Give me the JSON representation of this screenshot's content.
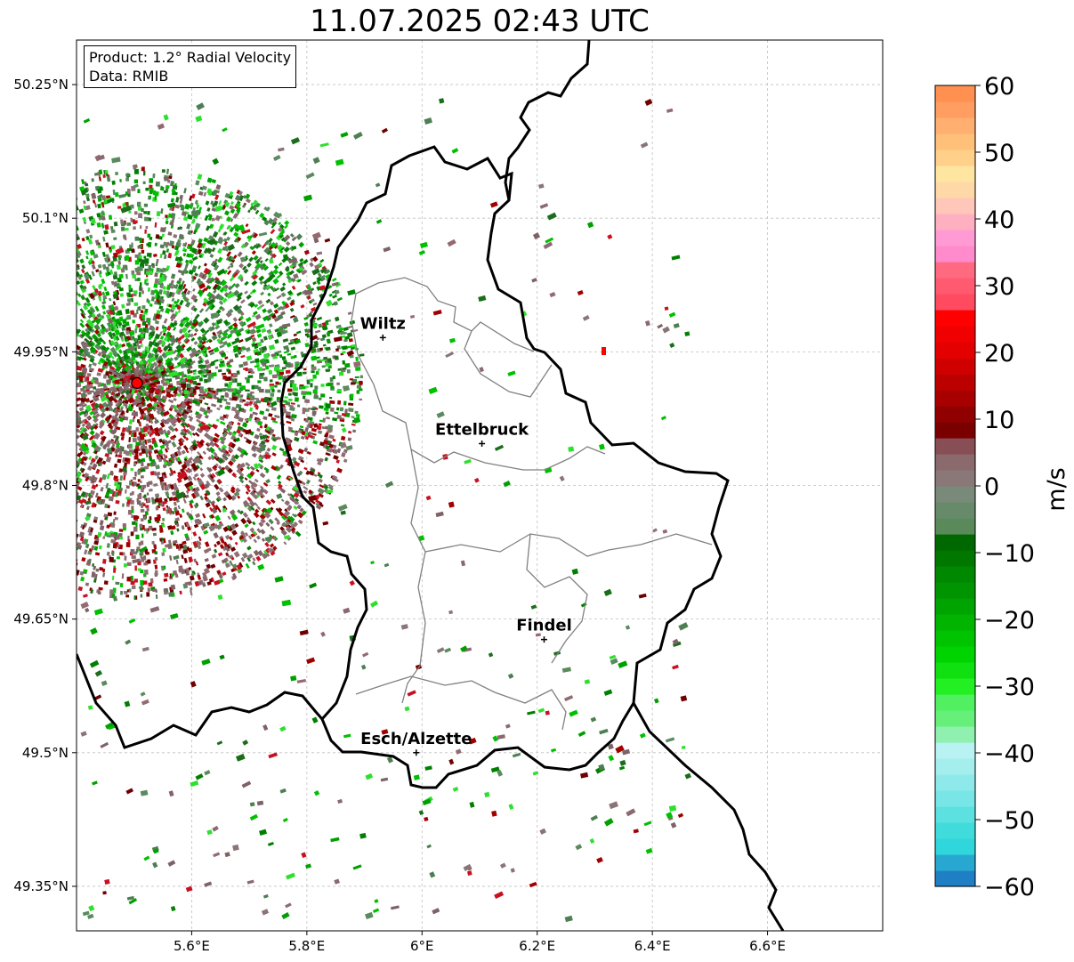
{
  "title": "11.07.2025 02:43 UTC",
  "info": {
    "product": "Product: 1.2° Radial Velocity",
    "data": "Data: RMIB"
  },
  "map": {
    "lon_range": [
      5.4,
      6.8
    ],
    "lat_range": [
      49.3,
      50.3
    ],
    "x_ticks": [
      {
        "lon": 5.6,
        "label": "5.6°E"
      },
      {
        "lon": 5.8,
        "label": "5.8°E"
      },
      {
        "lon": 6.0,
        "label": "6°E"
      },
      {
        "lon": 6.2,
        "label": "6.2°E"
      },
      {
        "lon": 6.4,
        "label": "6.4°E"
      },
      {
        "lon": 6.6,
        "label": "6.6°E"
      }
    ],
    "y_ticks": [
      {
        "lat": 50.25,
        "label": "50.25°N"
      },
      {
        "lat": 50.1,
        "label": "50.1°N"
      },
      {
        "lat": 49.95,
        "label": "49.95°N"
      },
      {
        "lat": 49.8,
        "label": "49.8°N"
      },
      {
        "lat": 49.65,
        "label": "49.65°N"
      },
      {
        "lat": 49.5,
        "label": "49.5°N"
      },
      {
        "lat": 49.35,
        "label": "49.35°N"
      }
    ],
    "grid": true,
    "radar_site": {
      "lon": 5.505,
      "lat": 49.915,
      "color": "#ff0000"
    },
    "cities": [
      {
        "name": "Wiltz",
        "lon": 5.932,
        "lat": 49.966
      },
      {
        "name": "Ettelbruck",
        "lon": 6.104,
        "lat": 49.847
      },
      {
        "name": "Findel",
        "lon": 6.212,
        "lat": 49.627
      },
      {
        "name": "Esch/Alzette",
        "lon": 5.99,
        "lat": 49.5
      }
    ],
    "border_color": "#000000",
    "canton_color": "#808080"
  },
  "colorbar": {
    "label": "m/s",
    "vmin": -60,
    "vmax": 60,
    "ticks": [
      {
        "value": 60,
        "label": "60"
      },
      {
        "value": 50,
        "label": "50"
      },
      {
        "value": 40,
        "label": "40"
      },
      {
        "value": 30,
        "label": "30"
      },
      {
        "value": 20,
        "label": "20"
      },
      {
        "value": 10,
        "label": "10"
      },
      {
        "value": 0,
        "label": "0"
      },
      {
        "value": -10,
        "label": "−10"
      },
      {
        "value": -20,
        "label": "−20"
      },
      {
        "value": -30,
        "label": "−30"
      },
      {
        "value": -40,
        "label": "−40"
      },
      {
        "value": -50,
        "label": "−50"
      },
      {
        "value": -60,
        "label": "−60"
      }
    ],
    "colors": [
      "#1f7fc4",
      "#28a8d0",
      "#2fd6dc",
      "#40dcdc",
      "#5ce0e0",
      "#78e6e6",
      "#8eeaea",
      "#a4eeee",
      "#b8f2f2",
      "#8ff0b0",
      "#66f07a",
      "#50f060",
      "#22f022",
      "#10e010",
      "#00d400",
      "#00c400",
      "#00b400",
      "#00a400",
      "#009400",
      "#008800",
      "#007800",
      "#006800",
      "#5a8a5a",
      "#668a6a",
      "#7a8a7a",
      "#8a7878",
      "#8a6a6c",
      "#884e56",
      "#7a0000",
      "#900000",
      "#a80000",
      "#bc0000",
      "#d00000",
      "#e40000",
      "#f00000",
      "#ff0000",
      "#ff4a60",
      "#ff5a70",
      "#ff6a80",
      "#ff8acc",
      "#ff9ad4",
      "#ffb0c0",
      "#ffc6ba",
      "#ffd8a8",
      "#ffe6a0",
      "#ffd08a",
      "#ffc07a",
      "#ffb070",
      "#ff9e60",
      "#ff9050"
    ]
  }
}
